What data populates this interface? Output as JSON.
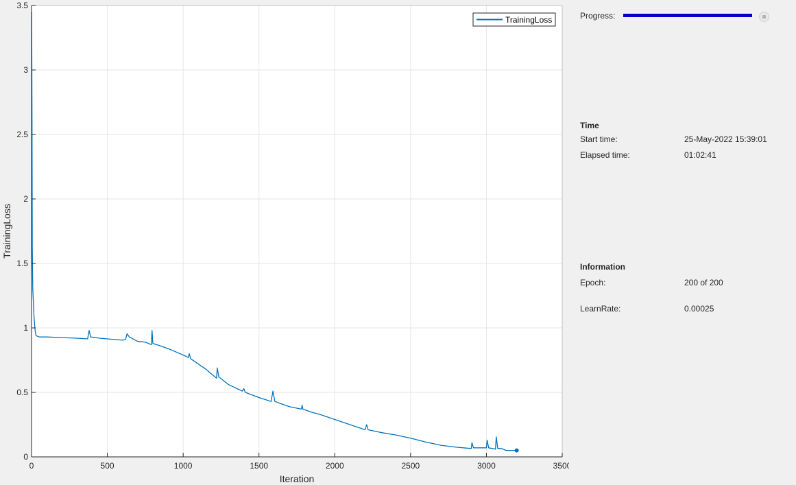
{
  "chart_data": {
    "type": "line",
    "xlabel": "Iteration",
    "ylabel": "TrainingLoss",
    "xlim": [
      0,
      3500
    ],
    "ylim": [
      0,
      3.5
    ],
    "xticks": [
      0,
      500,
      1000,
      1500,
      2000,
      2500,
      3000,
      3500
    ],
    "xtick_labels": [
      "0",
      "500",
      "1000",
      "1500",
      "2000",
      "2500",
      "3000",
      "3500"
    ],
    "yticks": [
      0,
      0.5,
      1,
      1.5,
      2,
      2.5,
      3,
      3.5
    ],
    "ytick_labels": [
      "0",
      "0.5",
      "1",
      "1.5",
      "2",
      "2.5",
      "3",
      "3.5"
    ],
    "grid": true,
    "legend_position": "top-right",
    "series": [
      {
        "name": "TrainingLoss",
        "color": "#0072bd",
        "points": [
          [
            1,
            3.45
          ],
          [
            3,
            2.6
          ],
          [
            5,
            1.62
          ],
          [
            8,
            1.3
          ],
          [
            12,
            1.2
          ],
          [
            16,
            1.1
          ],
          [
            20,
            1.03
          ],
          [
            25,
            0.97
          ],
          [
            30,
            0.94
          ],
          [
            50,
            0.93
          ],
          [
            100,
            0.93
          ],
          [
            200,
            0.925
          ],
          [
            300,
            0.92
          ],
          [
            370,
            0.915
          ],
          [
            380,
            0.98
          ],
          [
            390,
            0.93
          ],
          [
            450,
            0.92
          ],
          [
            500,
            0.915
          ],
          [
            600,
            0.905
          ],
          [
            620,
            0.91
          ],
          [
            630,
            0.955
          ],
          [
            645,
            0.93
          ],
          [
            700,
            0.895
          ],
          [
            750,
            0.89
          ],
          [
            790,
            0.87
          ],
          [
            795,
            0.98
          ],
          [
            800,
            0.88
          ],
          [
            850,
            0.86
          ],
          [
            900,
            0.84
          ],
          [
            950,
            0.815
          ],
          [
            1000,
            0.79
          ],
          [
            1035,
            0.77
          ],
          [
            1040,
            0.8
          ],
          [
            1050,
            0.76
          ],
          [
            1100,
            0.72
          ],
          [
            1150,
            0.68
          ],
          [
            1200,
            0.63
          ],
          [
            1220,
            0.61
          ],
          [
            1225,
            0.69
          ],
          [
            1235,
            0.62
          ],
          [
            1300,
            0.56
          ],
          [
            1390,
            0.51
          ],
          [
            1400,
            0.53
          ],
          [
            1410,
            0.5
          ],
          [
            1500,
            0.46
          ],
          [
            1580,
            0.43
          ],
          [
            1592,
            0.51
          ],
          [
            1605,
            0.43
          ],
          [
            1650,
            0.41
          ],
          [
            1700,
            0.39
          ],
          [
            1780,
            0.37
          ],
          [
            1785,
            0.4
          ],
          [
            1790,
            0.37
          ],
          [
            1850,
            0.345
          ],
          [
            1900,
            0.33
          ],
          [
            1950,
            0.31
          ],
          [
            2000,
            0.29
          ],
          [
            2100,
            0.25
          ],
          [
            2200,
            0.21
          ],
          [
            2210,
            0.25
          ],
          [
            2220,
            0.21
          ],
          [
            2300,
            0.19
          ],
          [
            2400,
            0.17
          ],
          [
            2500,
            0.145
          ],
          [
            2600,
            0.115
          ],
          [
            2700,
            0.09
          ],
          [
            2800,
            0.075
          ],
          [
            2900,
            0.065
          ],
          [
            2905,
            0.11
          ],
          [
            2915,
            0.07
          ],
          [
            3000,
            0.07
          ],
          [
            3005,
            0.13
          ],
          [
            3015,
            0.07
          ],
          [
            3060,
            0.06
          ],
          [
            3065,
            0.155
          ],
          [
            3075,
            0.065
          ],
          [
            3100,
            0.065
          ],
          [
            3130,
            0.05
          ],
          [
            3160,
            0.05
          ],
          [
            3200,
            0.05
          ]
        ]
      }
    ]
  },
  "side_panel": {
    "progress_label": "Progress:",
    "progress_fraction": 1.0,
    "progress_color": "#0000cc",
    "time_section": "Time",
    "start_time_label": "Start time:",
    "start_time_value": "25-May-2022 15:39:01",
    "elapsed_time_label": "Elapsed time:",
    "elapsed_time_value": "01:02:41",
    "info_section": "Information",
    "epoch_label": "Epoch:",
    "epoch_value": "200 of 200",
    "learnrate_label": "LearnRate:",
    "learnrate_value": "0.00025"
  }
}
